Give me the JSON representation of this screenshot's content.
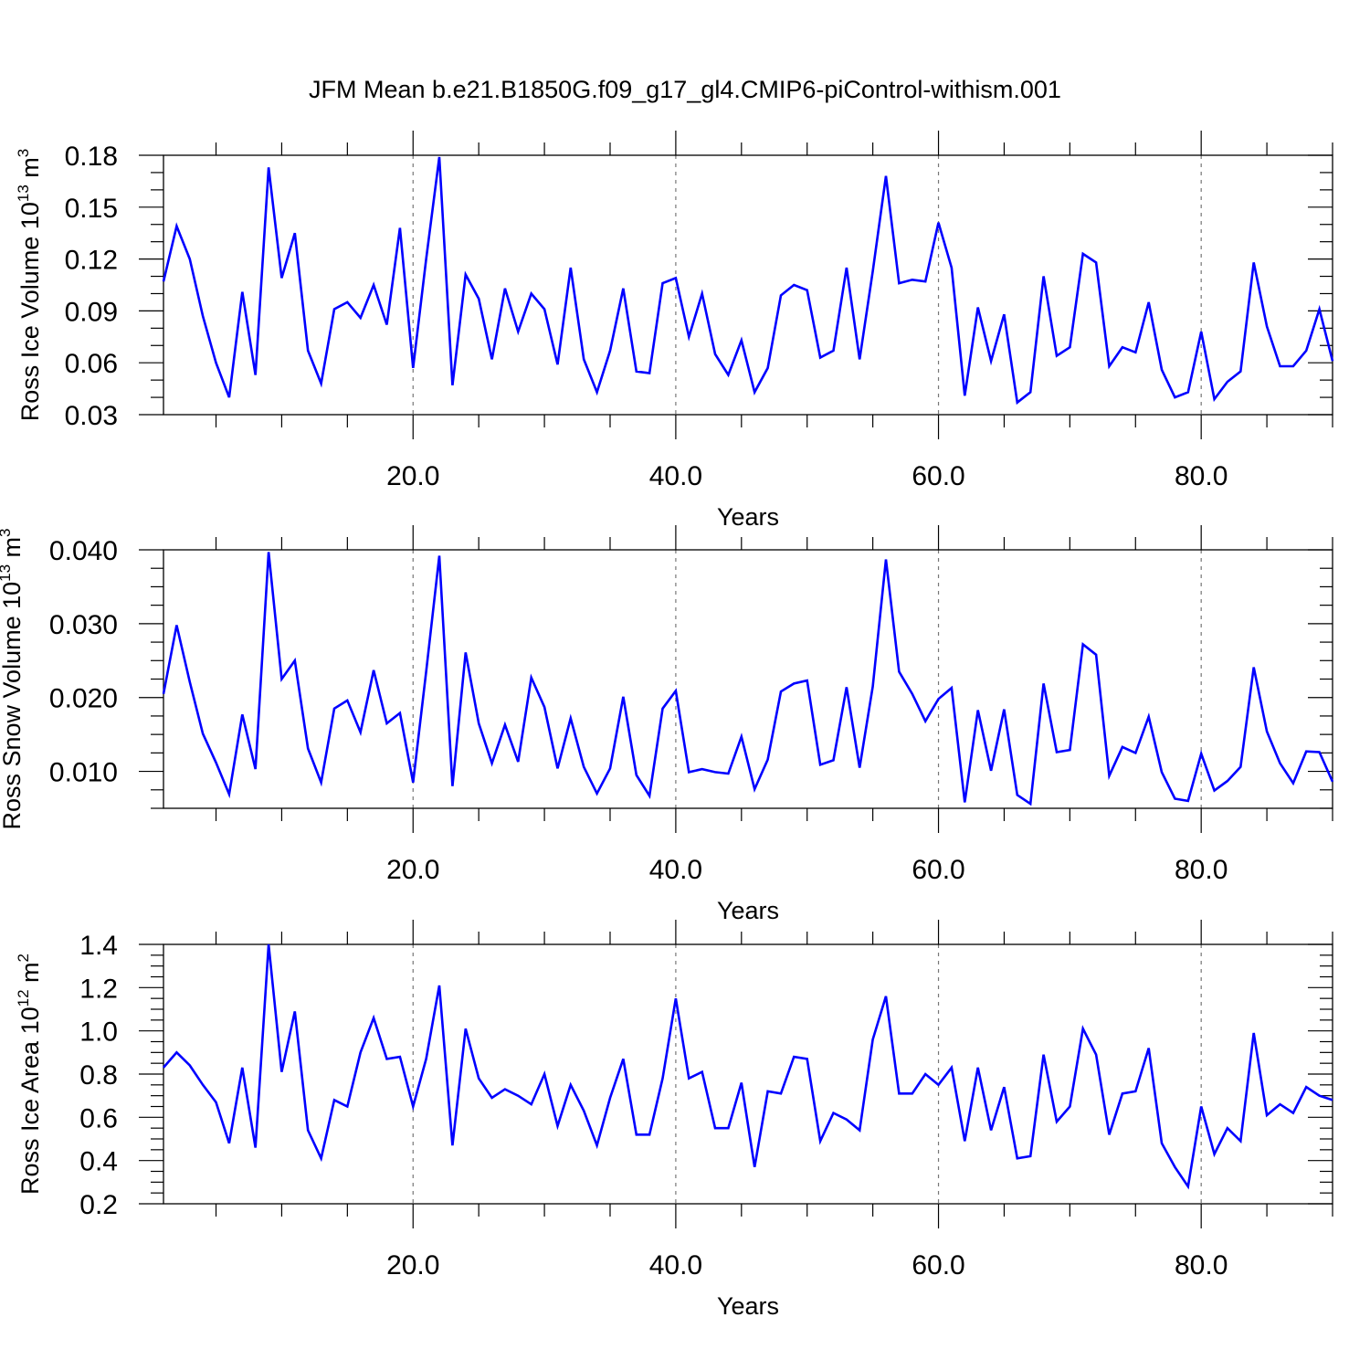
{
  "title": "JFM Mean b.e21.B1850G.f09_g17_gl4.CMIP6-piControl-withism.001",
  "colors": {
    "series": "#0000ff",
    "grid": "#777777",
    "axis": "#000000"
  },
  "chart_data": [
    {
      "type": "line",
      "ylabel": "Ross Ice Volume 10",
      "ylabel_exp": "13",
      "ylabel_unit": " m",
      "ylabel_unit_exp": "3",
      "xlabel": "Years",
      "xlim": [
        1,
        90
      ],
      "ylim": [
        0.03,
        0.18
      ],
      "yticks": [
        0.03,
        0.06,
        0.09,
        0.12,
        0.15,
        0.18
      ],
      "ytick_labels": [
        "0.03",
        "0.06",
        "0.09",
        "0.12",
        "0.15",
        "0.18"
      ],
      "yminor_step": 0.01,
      "xticks": [
        20,
        40,
        60,
        80
      ],
      "xtick_labels": [
        "20.0",
        "40.0",
        "60.0",
        "80.0"
      ],
      "xminor_step": 5,
      "grid": "x-dashed",
      "x": [
        1,
        2,
        3,
        4,
        5,
        6,
        7,
        8,
        9,
        10,
        11,
        12,
        13,
        14,
        15,
        16,
        17,
        18,
        19,
        20,
        21,
        22,
        23,
        24,
        25,
        26,
        27,
        28,
        29,
        30,
        31,
        32,
        33,
        34,
        35,
        36,
        37,
        38,
        39,
        40,
        41,
        42,
        43,
        44,
        45,
        46,
        47,
        48,
        49,
        50,
        51,
        52,
        53,
        54,
        55,
        56,
        57,
        58,
        59,
        60,
        61,
        62,
        63,
        64,
        65,
        66,
        67,
        68,
        69,
        70,
        71,
        72,
        73,
        74,
        75,
        76,
        77,
        78,
        79,
        80,
        81,
        82,
        83,
        84,
        85,
        86,
        87,
        88,
        89,
        90
      ],
      "values": [
        0.107,
        0.139,
        0.12,
        0.087,
        0.06,
        0.04,
        0.101,
        0.053,
        0.173,
        0.109,
        0.135,
        0.067,
        0.048,
        0.091,
        0.095,
        0.086,
        0.105,
        0.082,
        0.138,
        0.057,
        0.12,
        0.179,
        0.047,
        0.111,
        0.097,
        0.062,
        0.103,
        0.078,
        0.1,
        0.091,
        0.059,
        0.115,
        0.062,
        0.043,
        0.067,
        0.103,
        0.055,
        0.054,
        0.106,
        0.109,
        0.075,
        0.1,
        0.065,
        0.053,
        0.073,
        0.043,
        0.057,
        0.099,
        0.105,
        0.102,
        0.063,
        0.067,
        0.115,
        0.062,
        0.113,
        0.168,
        0.106,
        0.108,
        0.107,
        0.141,
        0.115,
        0.041,
        0.092,
        0.061,
        0.088,
        0.037,
        0.043,
        0.11,
        0.064,
        0.069,
        0.123,
        0.118,
        0.058,
        0.069,
        0.066,
        0.095,
        0.056,
        0.04,
        0.043,
        0.078,
        0.039,
        0.049,
        0.055,
        0.118,
        0.081,
        0.058,
        0.058,
        0.067,
        0.091,
        0.061
      ]
    },
    {
      "type": "line",
      "ylabel": "Ross Snow Volume 10",
      "ylabel_exp": "13",
      "ylabel_unit": " m",
      "ylabel_unit_exp": "3",
      "xlabel": "Years",
      "xlim": [
        1,
        90
      ],
      "ylim": [
        0.005,
        0.04
      ],
      "yticks": [
        0.01,
        0.02,
        0.03,
        0.04
      ],
      "ytick_labels": [
        "0.010",
        "0.020",
        "0.030",
        "0.040"
      ],
      "yminor_step": 0.0025,
      "xticks": [
        20,
        40,
        60,
        80
      ],
      "xtick_labels": [
        "20.0",
        "40.0",
        "60.0",
        "80.0"
      ],
      "xminor_step": 5,
      "grid": "x-dashed",
      "x": [
        1,
        2,
        3,
        4,
        5,
        6,
        7,
        8,
        9,
        10,
        11,
        12,
        13,
        14,
        15,
        16,
        17,
        18,
        19,
        20,
        21,
        22,
        23,
        24,
        25,
        26,
        27,
        28,
        29,
        30,
        31,
        32,
        33,
        34,
        35,
        36,
        37,
        38,
        39,
        40,
        41,
        42,
        43,
        44,
        45,
        46,
        47,
        48,
        49,
        50,
        51,
        52,
        53,
        54,
        55,
        56,
        57,
        58,
        59,
        60,
        61,
        62,
        63,
        64,
        65,
        66,
        67,
        68,
        69,
        70,
        71,
        72,
        73,
        74,
        75,
        76,
        77,
        78,
        79,
        80,
        81,
        82,
        83,
        84,
        85,
        86,
        87,
        88,
        89,
        90
      ],
      "values": [
        0.0205,
        0.0298,
        0.0221,
        0.0151,
        0.0112,
        0.0069,
        0.0177,
        0.0103,
        0.0397,
        0.0225,
        0.025,
        0.0131,
        0.0085,
        0.0185,
        0.0196,
        0.0153,
        0.0237,
        0.0165,
        0.0179,
        0.0085,
        0.0235,
        0.0392,
        0.008,
        0.0261,
        0.0165,
        0.0111,
        0.0163,
        0.0113,
        0.0227,
        0.0187,
        0.0104,
        0.0172,
        0.0106,
        0.007,
        0.0104,
        0.0201,
        0.0095,
        0.0067,
        0.0185,
        0.0209,
        0.0099,
        0.0103,
        0.0099,
        0.0097,
        0.0147,
        0.0076,
        0.0116,
        0.0208,
        0.0219,
        0.0223,
        0.0109,
        0.0115,
        0.0214,
        0.0105,
        0.0215,
        0.0387,
        0.0235,
        0.0205,
        0.0168,
        0.0198,
        0.0213,
        0.0058,
        0.0183,
        0.0101,
        0.0184,
        0.0068,
        0.0056,
        0.0219,
        0.0126,
        0.0129,
        0.0272,
        0.0258,
        0.0094,
        0.0133,
        0.0125,
        0.0174,
        0.0099,
        0.0063,
        0.006,
        0.0124,
        0.0074,
        0.0087,
        0.0106,
        0.0241,
        0.0154,
        0.0111,
        0.0084,
        0.0127,
        0.0126,
        0.0086
      ]
    },
    {
      "type": "line",
      "ylabel": "Ross Ice Area 10",
      "ylabel_exp": "12",
      "ylabel_unit": " m",
      "ylabel_unit_exp": "2",
      "xlabel": "Years",
      "xlim": [
        1,
        90
      ],
      "ylim": [
        0.2,
        1.4
      ],
      "yticks": [
        0.2,
        0.4,
        0.6,
        0.8,
        1.0,
        1.2,
        1.4
      ],
      "ytick_labels": [
        "0.2",
        "0.4",
        "0.6",
        "0.8",
        "1.0",
        "1.2",
        "1.4"
      ],
      "yminor_step": 0.05,
      "xticks": [
        20,
        40,
        60,
        80
      ],
      "xtick_labels": [
        "20.0",
        "40.0",
        "60.0",
        "80.0"
      ],
      "xminor_step": 5,
      "grid": "x-dashed",
      "x": [
        1,
        2,
        3,
        4,
        5,
        6,
        7,
        8,
        9,
        10,
        11,
        12,
        13,
        14,
        15,
        16,
        17,
        18,
        19,
        20,
        21,
        22,
        23,
        24,
        25,
        26,
        27,
        28,
        29,
        30,
        31,
        32,
        33,
        34,
        35,
        36,
        37,
        38,
        39,
        40,
        41,
        42,
        43,
        44,
        45,
        46,
        47,
        48,
        49,
        50,
        51,
        52,
        53,
        54,
        55,
        56,
        57,
        58,
        59,
        60,
        61,
        62,
        63,
        64,
        65,
        66,
        67,
        68,
        69,
        70,
        71,
        72,
        73,
        74,
        75,
        76,
        77,
        78,
        79,
        80,
        81,
        82,
        83,
        84,
        85,
        86,
        87,
        88,
        89,
        90
      ],
      "values": [
        0.83,
        0.9,
        0.84,
        0.75,
        0.67,
        0.48,
        0.83,
        0.46,
        1.4,
        0.81,
        1.09,
        0.54,
        0.41,
        0.68,
        0.65,
        0.9,
        1.06,
        0.87,
        0.88,
        0.65,
        0.87,
        1.21,
        0.47,
        1.01,
        0.78,
        0.69,
        0.73,
        0.7,
        0.66,
        0.8,
        0.56,
        0.75,
        0.63,
        0.47,
        0.69,
        0.87,
        0.52,
        0.52,
        0.78,
        1.15,
        0.78,
        0.81,
        0.55,
        0.55,
        0.76,
        0.37,
        0.72,
        0.71,
        0.88,
        0.87,
        0.49,
        0.62,
        0.59,
        0.54,
        0.96,
        1.16,
        0.71,
        0.71,
        0.8,
        0.75,
        0.83,
        0.49,
        0.83,
        0.54,
        0.74,
        0.41,
        0.42,
        0.89,
        0.58,
        0.65,
        1.01,
        0.89,
        0.52,
        0.71,
        0.72,
        0.92,
        0.48,
        0.37,
        0.28,
        0.65,
        0.43,
        0.55,
        0.49,
        0.99,
        0.61,
        0.66,
        0.62,
        0.74,
        0.7,
        0.68
      ]
    }
  ]
}
